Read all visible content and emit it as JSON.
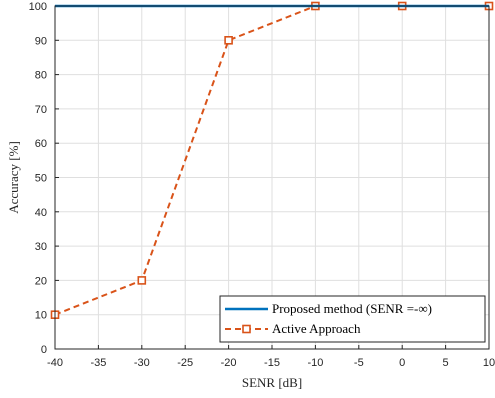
{
  "chart_data": {
    "type": "line",
    "title": "",
    "xlabel": "SENR [dB]",
    "ylabel": "Accuracy [%]",
    "xlim": [
      -40,
      10
    ],
    "ylim": [
      0,
      100
    ],
    "xticks": [
      -40,
      -35,
      -30,
      -25,
      -20,
      -15,
      -10,
      -5,
      0,
      5,
      10
    ],
    "yticks": [
      0,
      10,
      20,
      30,
      40,
      50,
      60,
      70,
      80,
      90,
      100
    ],
    "grid": true,
    "legend_position": "bottom-right",
    "series": [
      {
        "name": "Proposed method (SENR =-∞)",
        "color": "#0072BD",
        "style": "solid",
        "marker": "none",
        "x": [
          -40,
          10
        ],
        "y": [
          100,
          100
        ]
      },
      {
        "name": "Active Approach",
        "color": "#D95319",
        "style": "dashed",
        "marker": "square",
        "x": [
          -40,
          -30,
          -20,
          -10,
          0,
          10
        ],
        "y": [
          10,
          20,
          90,
          100,
          100,
          100
        ]
      }
    ]
  }
}
